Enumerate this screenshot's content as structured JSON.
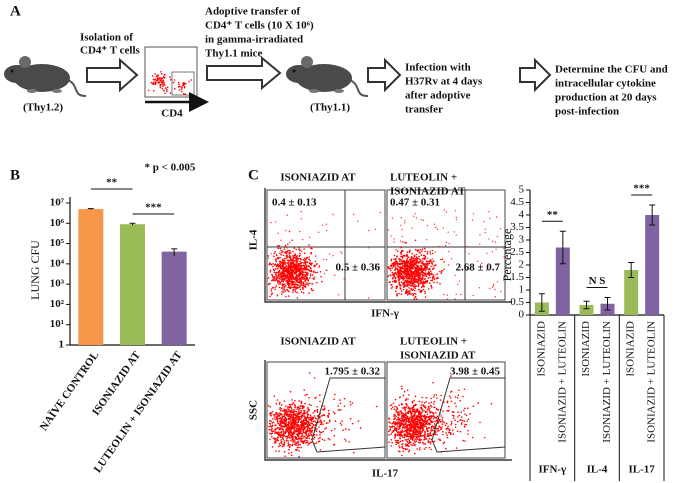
{
  "panel_labels": [
    "A",
    "B",
    "C"
  ],
  "panel_a": {
    "isolation": [
      "Isolation of",
      "CD4⁺ T cells"
    ],
    "donor": "(Thy1.2)",
    "marker": "CD4",
    "transfer": [
      "Adoptive transfer of",
      "CD4⁺ T cells (10 X 10⁶)",
      "in gamma-irradiated",
      "Thy1.1 mice"
    ],
    "recipient": "(Thy1.1)",
    "infection": [
      "Infection with",
      "H37Rv at 4 days",
      "after adoptive",
      "transfer"
    ],
    "readout": [
      "Determine the CFU and",
      "intracellular cytokine",
      "production at 20 days",
      "post-infection"
    ]
  },
  "flow": {
    "top_axes": [
      "IL-4",
      "IFN-γ"
    ],
    "bottom_axes": [
      "SSC",
      "IL-17"
    ],
    "plots": [
      {
        "title": [
          "ISONIAZID AT"
        ],
        "values": [
          "0.4 ± 0.13",
          "0.5 ± 0.36"
        ]
      },
      {
        "title": [
          "LUTEOLIN +",
          "ISONIAZID AT"
        ],
        "values": [
          "0.47 ± 0.31",
          "2.68 ± 0.7"
        ]
      },
      {
        "title": [
          "ISONIAZID AT"
        ],
        "values": [
          "1.795 ± 0.32"
        ]
      },
      {
        "title": [
          "LUTEOLIN +",
          "ISONIAZID AT"
        ],
        "values": [
          "3.98 ± 0.45"
        ]
      }
    ]
  },
  "chart_data": [
    {
      "type": "bar",
      "ylabel": "LUNG CFU",
      "log_scale": true,
      "categories": [
        "NAÏVE CONTROL",
        "ISONIAZID AT",
        "LUTEOLIN + ISONIAZID AT"
      ],
      "values": [
        5000000,
        900000,
        40000
      ],
      "errors": [
        300000,
        100000,
        15000
      ],
      "colors": [
        "#f79646",
        "#9bbb59",
        "#8064a2"
      ],
      "ylim": [
        1,
        10000000
      ],
      "yticks": [
        1,
        {
          "value": 10,
          "label": "10¹"
        },
        {
          "value": 100,
          "label": "10²"
        },
        {
          "value": 1000,
          "label": "10³"
        },
        {
          "value": 10000,
          "label": "10⁴"
        },
        {
          "value": 100000,
          "label": "10⁵"
        },
        {
          "value": 1000000,
          "label": "10⁶"
        },
        {
          "value": 10000000,
          "label": "10⁷"
        }
      ],
      "annotations": [
        "* p < 0.005",
        "**",
        "***"
      ]
    },
    {
      "type": "grouped_bar",
      "ylabel": "Percentage",
      "categories": [
        "IFN-γ",
        "IL-4",
        "IL-17"
      ],
      "series": [
        {
          "name": "ISONIAZID",
          "color": "#9bbb59",
          "values": [
            0.5,
            0.4,
            1.8
          ],
          "errors": [
            0.35,
            0.15,
            0.3
          ]
        },
        {
          "name": "ISONIAZID + LUTEOLIN",
          "color": "#8064a2",
          "values": [
            2.7,
            0.45,
            4.0
          ],
          "errors": [
            0.65,
            0.25,
            0.4
          ]
        }
      ],
      "ylim": [
        0,
        5
      ],
      "yticks": [
        0,
        0.5,
        1,
        1.5,
        2,
        2.5,
        3,
        3.5,
        4,
        4.5,
        5
      ],
      "annotations": [
        "**",
        "N S",
        "***"
      ]
    }
  ]
}
